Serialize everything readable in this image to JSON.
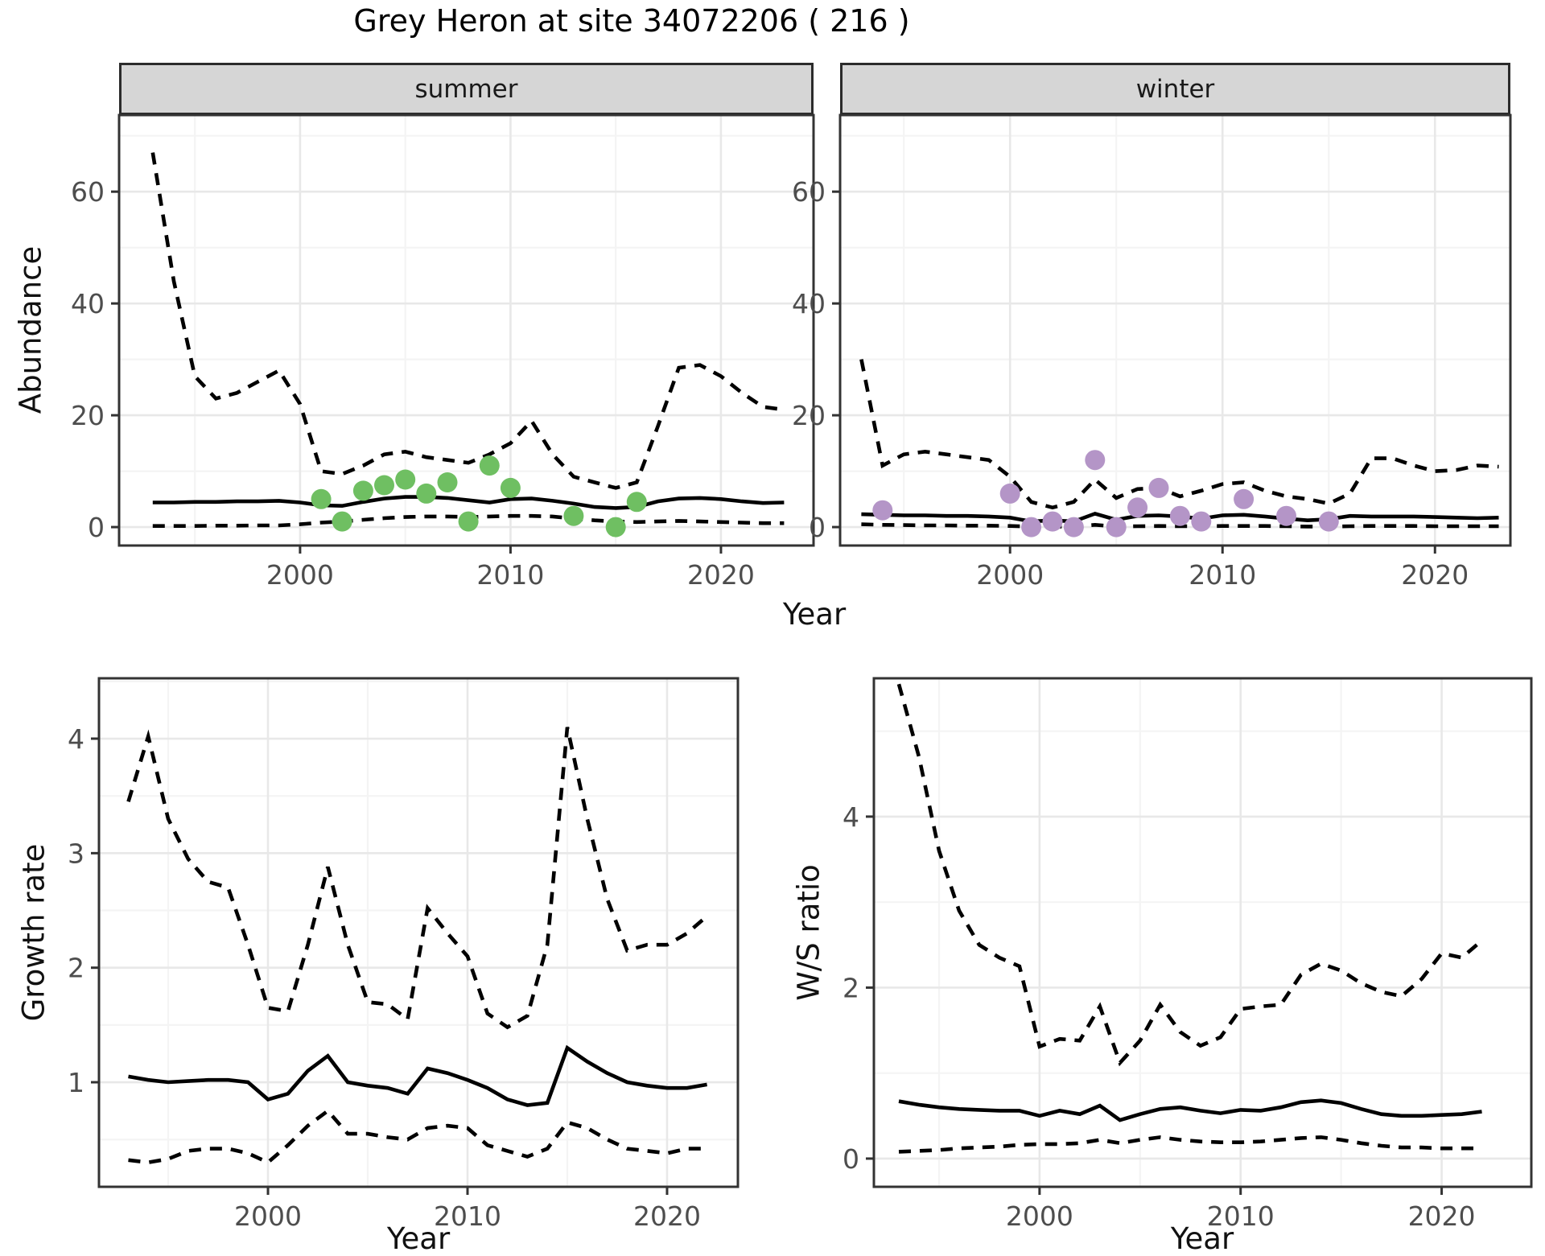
{
  "labels": {
    "title": "Grey Heron at site 34072206 ( 216 )",
    "abundance_ylabel": "Abundance",
    "top_xlabel": "Year",
    "growth_ylabel": "Growth rate",
    "growth_xlabel": "Year",
    "ws_ylabel": "W/S ratio",
    "ws_xlabel": "Year"
  },
  "colors": {
    "summer_points": "#6fbf62",
    "winter_points": "#b495c7",
    "line": "#000000",
    "grid_major": "#e8e8e8",
    "grid_minor": "#f4f4f4",
    "panel_border": "#333333",
    "panel_background": "#ffffff",
    "strip_background": "#d6d6d6",
    "axis_text": "#4d4d4d",
    "tick_mark": "#333333"
  },
  "chart_data": [
    {
      "id": "abundance-summer",
      "type": "line",
      "facet_label": "summer",
      "ylabel": "Abundance",
      "xlabel": "Year",
      "x_ticks": [
        2000,
        2010,
        2020
      ],
      "x_minor": [
        1995,
        2005,
        2015
      ],
      "y_ticks": [
        0,
        20,
        40,
        60
      ],
      "y_minor": [
        10,
        30,
        50,
        70
      ],
      "xlim": [
        1991.4,
        2024.4
      ],
      "ylim": [
        -3.3,
        73.7
      ],
      "grid": true,
      "legend": "none",
      "years": [
        1993,
        1994,
        1995,
        1996,
        1997,
        1998,
        1999,
        2000,
        2001,
        2002,
        2003,
        2004,
        2005,
        2006,
        2007,
        2008,
        2009,
        2010,
        2011,
        2012,
        2013,
        2014,
        2015,
        2016,
        2017,
        2018,
        2019,
        2020,
        2021,
        2022,
        2023
      ],
      "series": [
        {
          "name": "upper-95ci",
          "style": "dashed",
          "values": [
            67,
            44,
            27,
            23,
            24,
            26,
            28,
            22,
            10,
            9.5,
            11,
            13,
            13.5,
            12.5,
            12,
            11.5,
            13,
            15,
            19,
            13,
            9,
            8,
            7,
            8,
            18,
            28.5,
            29,
            27,
            24,
            21.5,
            21
          ]
        },
        {
          "name": "median",
          "style": "solid",
          "values": [
            4.4,
            4.4,
            4.5,
            4.5,
            4.6,
            4.6,
            4.7,
            4.4,
            3.9,
            3.8,
            4.5,
            5.1,
            5.4,
            5.4,
            5.2,
            4.8,
            4.4,
            5.0,
            5.1,
            4.7,
            4.2,
            3.6,
            3.4,
            3.6,
            4.6,
            5.1,
            5.2,
            5.0,
            4.6,
            4.3,
            4.4
          ]
        },
        {
          "name": "lower-95ci",
          "style": "dashed",
          "values": [
            0.2,
            0.2,
            0.2,
            0.25,
            0.25,
            0.3,
            0.3,
            0.5,
            0.8,
            1.0,
            1.3,
            1.6,
            1.8,
            1.9,
            1.9,
            1.8,
            1.9,
            2.0,
            2.0,
            1.9,
            1.5,
            1.2,
            1.0,
            0.9,
            1.0,
            1.1,
            1.0,
            0.9,
            0.8,
            0.7,
            0.7
          ]
        }
      ],
      "points": {
        "name": "summer observed counts",
        "color": "#6fbf62",
        "years": [
          2001,
          2002,
          2003,
          2004,
          2005,
          2006,
          2007,
          2008,
          2009,
          2010,
          2013,
          2015,
          2016
        ],
        "values": [
          5,
          1,
          6.5,
          7.5,
          8.5,
          6,
          8,
          1,
          11,
          7,
          2,
          0,
          4.5
        ]
      }
    },
    {
      "id": "abundance-winter",
      "type": "line",
      "facet_label": "winter",
      "ylabel": "Abundance",
      "xlabel": "Year",
      "x_ticks": [
        2000,
        2010,
        2020
      ],
      "x_minor": [
        1995,
        2005,
        2015
      ],
      "y_ticks": [
        0,
        20,
        40,
        60
      ],
      "y_minor": [
        10,
        30,
        50,
        70
      ],
      "xlim": [
        1992.0,
        2023.55
      ],
      "ylim": [
        -3.3,
        73.7
      ],
      "grid": true,
      "legend": "none",
      "years": [
        1993,
        1994,
        1995,
        1996,
        1997,
        1998,
        1999,
        2000,
        2001,
        2002,
        2003,
        2004,
        2005,
        2006,
        2007,
        2008,
        2009,
        2010,
        2011,
        2012,
        2013,
        2014,
        2015,
        2016,
        2017,
        2018,
        2019,
        2020,
        2021,
        2022,
        2023
      ],
      "series": [
        {
          "name": "upper-95ci",
          "style": "dashed",
          "values": [
            30,
            11,
            13,
            13.5,
            13,
            12.5,
            12,
            9,
            4.5,
            3.5,
            4.5,
            8.5,
            5.2,
            6.8,
            7,
            5.5,
            6.5,
            7.7,
            8,
            6.5,
            5.5,
            5,
            4.2,
            6,
            12.3,
            12.3,
            11,
            10,
            10.2,
            11,
            10.8
          ]
        },
        {
          "name": "median",
          "style": "solid",
          "values": [
            2.3,
            2.2,
            2.1,
            2.1,
            2.0,
            2.0,
            1.9,
            1.7,
            1.0,
            1.2,
            1.0,
            2.4,
            1.3,
            2.0,
            2.1,
            1.9,
            1.5,
            2.1,
            2.2,
            1.9,
            1.5,
            1.2,
            1.4,
            2.0,
            1.9,
            1.9,
            1.9,
            1.8,
            1.7,
            1.6,
            1.7
          ]
        },
        {
          "name": "lower-95ci",
          "style": "dashed",
          "values": [
            0.5,
            0.4,
            0.35,
            0.3,
            0.3,
            0.25,
            0.25,
            0.2,
            0.1,
            0.1,
            0.1,
            0.4,
            0.1,
            0.15,
            0.2,
            0.15,
            0.15,
            0.2,
            0.2,
            0.2,
            0.15,
            0.1,
            0.1,
            0.15,
            0.2,
            0.2,
            0.2,
            0.15,
            0.15,
            0.15,
            0.15
          ]
        }
      ],
      "points": {
        "name": "winter observed counts",
        "color": "#b495c7",
        "years": [
          1994,
          2000,
          2001,
          2002,
          2003,
          2004,
          2005,
          2006,
          2007,
          2008,
          2009,
          2011,
          2013,
          2015
        ],
        "values": [
          3,
          6,
          0,
          1,
          0,
          12,
          0,
          3.5,
          7,
          2,
          1,
          5,
          2,
          1
        ]
      }
    },
    {
      "id": "growth-rate",
      "type": "line",
      "facet_label": "",
      "ylabel": "Growth rate",
      "xlabel": "Year",
      "x_ticks": [
        2000,
        2010,
        2020
      ],
      "x_minor": [
        1995,
        2005,
        2015
      ],
      "y_ticks": [
        1,
        2,
        3,
        4
      ],
      "y_minor": [
        0.5,
        1.5,
        2.5,
        3.5,
        4.5
      ],
      "xlim": [
        1991.53,
        2023.55
      ],
      "ylim": [
        0.087,
        4.527
      ],
      "grid": true,
      "legend": "none",
      "years": [
        1993,
        1994,
        1995,
        1996,
        1997,
        1998,
        1999,
        2000,
        2001,
        2002,
        2003,
        2004,
        2005,
        2006,
        2007,
        2008,
        2009,
        2010,
        2011,
        2012,
        2013,
        2014,
        2015,
        2016,
        2017,
        2018,
        2019,
        2020,
        2021,
        2022
      ],
      "series": [
        {
          "name": "upper-95ci",
          "style": "dashed",
          "values": [
            3.45,
            4.02,
            3.3,
            2.95,
            2.75,
            2.7,
            2.2,
            1.65,
            1.62,
            2.2,
            2.88,
            2.2,
            1.7,
            1.68,
            1.55,
            2.52,
            2.3,
            2.1,
            1.6,
            1.48,
            1.58,
            2.2,
            4.1,
            3.3,
            2.6,
            2.15,
            2.2,
            2.2,
            2.3,
            2.45
          ]
        },
        {
          "name": "median",
          "style": "solid",
          "values": [
            1.05,
            1.02,
            1.0,
            1.01,
            1.02,
            1.02,
            1.0,
            0.85,
            0.9,
            1.1,
            1.23,
            1.0,
            0.97,
            0.95,
            0.9,
            1.12,
            1.08,
            1.02,
            0.95,
            0.85,
            0.8,
            0.82,
            1.3,
            1.18,
            1.08,
            1.0,
            0.97,
            0.95,
            0.95,
            0.98
          ]
        },
        {
          "name": "lower-95ci",
          "style": "dashed",
          "values": [
            0.32,
            0.3,
            0.33,
            0.4,
            0.42,
            0.42,
            0.38,
            0.3,
            0.45,
            0.62,
            0.75,
            0.55,
            0.55,
            0.52,
            0.5,
            0.6,
            0.62,
            0.6,
            0.45,
            0.4,
            0.35,
            0.42,
            0.65,
            0.6,
            0.5,
            0.42,
            0.4,
            0.38,
            0.42,
            0.42
          ]
        }
      ],
      "points": null
    },
    {
      "id": "ws-ratio",
      "type": "line",
      "facet_label": "",
      "ylabel": "W/S ratio",
      "xlabel": "Year",
      "x_ticks": [
        2000,
        2010,
        2020
      ],
      "x_minor": [
        1995,
        2005,
        2015
      ],
      "y_ticks": [
        0,
        2,
        4
      ],
      "y_minor": [
        1,
        3,
        5
      ],
      "xlim": [
        1991.76,
        2024.46
      ],
      "ylim": [
        -0.33,
        5.618
      ],
      "grid": true,
      "legend": "none",
      "years": [
        1993,
        1994,
        1995,
        1996,
        1997,
        1998,
        1999,
        2000,
        2001,
        2002,
        2003,
        2004,
        2005,
        2006,
        2007,
        2008,
        2009,
        2010,
        2011,
        2012,
        2013,
        2014,
        2015,
        2016,
        2017,
        2018,
        2019,
        2020,
        2021,
        2022
      ],
      "series": [
        {
          "name": "upper-95ci",
          "style": "dashed",
          "values": [
            5.55,
            4.7,
            3.6,
            2.9,
            2.5,
            2.35,
            2.25,
            1.31,
            1.4,
            1.38,
            1.78,
            1.12,
            1.38,
            1.8,
            1.48,
            1.32,
            1.42,
            1.75,
            1.78,
            1.8,
            2.15,
            2.28,
            2.2,
            2.05,
            1.95,
            1.9,
            2.1,
            2.4,
            2.35,
            2.55
          ]
        },
        {
          "name": "median",
          "style": "solid",
          "values": [
            0.67,
            0.63,
            0.6,
            0.58,
            0.57,
            0.56,
            0.56,
            0.5,
            0.56,
            0.52,
            0.62,
            0.45,
            0.52,
            0.58,
            0.6,
            0.56,
            0.53,
            0.57,
            0.56,
            0.6,
            0.66,
            0.68,
            0.65,
            0.58,
            0.52,
            0.5,
            0.5,
            0.51,
            0.52,
            0.55
          ]
        },
        {
          "name": "lower-95ci",
          "style": "dashed",
          "values": [
            0.08,
            0.09,
            0.1,
            0.12,
            0.13,
            0.14,
            0.16,
            0.17,
            0.17,
            0.18,
            0.22,
            0.18,
            0.22,
            0.25,
            0.22,
            0.2,
            0.19,
            0.19,
            0.2,
            0.22,
            0.24,
            0.25,
            0.22,
            0.18,
            0.15,
            0.13,
            0.13,
            0.12,
            0.12,
            0.12
          ]
        }
      ],
      "points": null
    }
  ]
}
